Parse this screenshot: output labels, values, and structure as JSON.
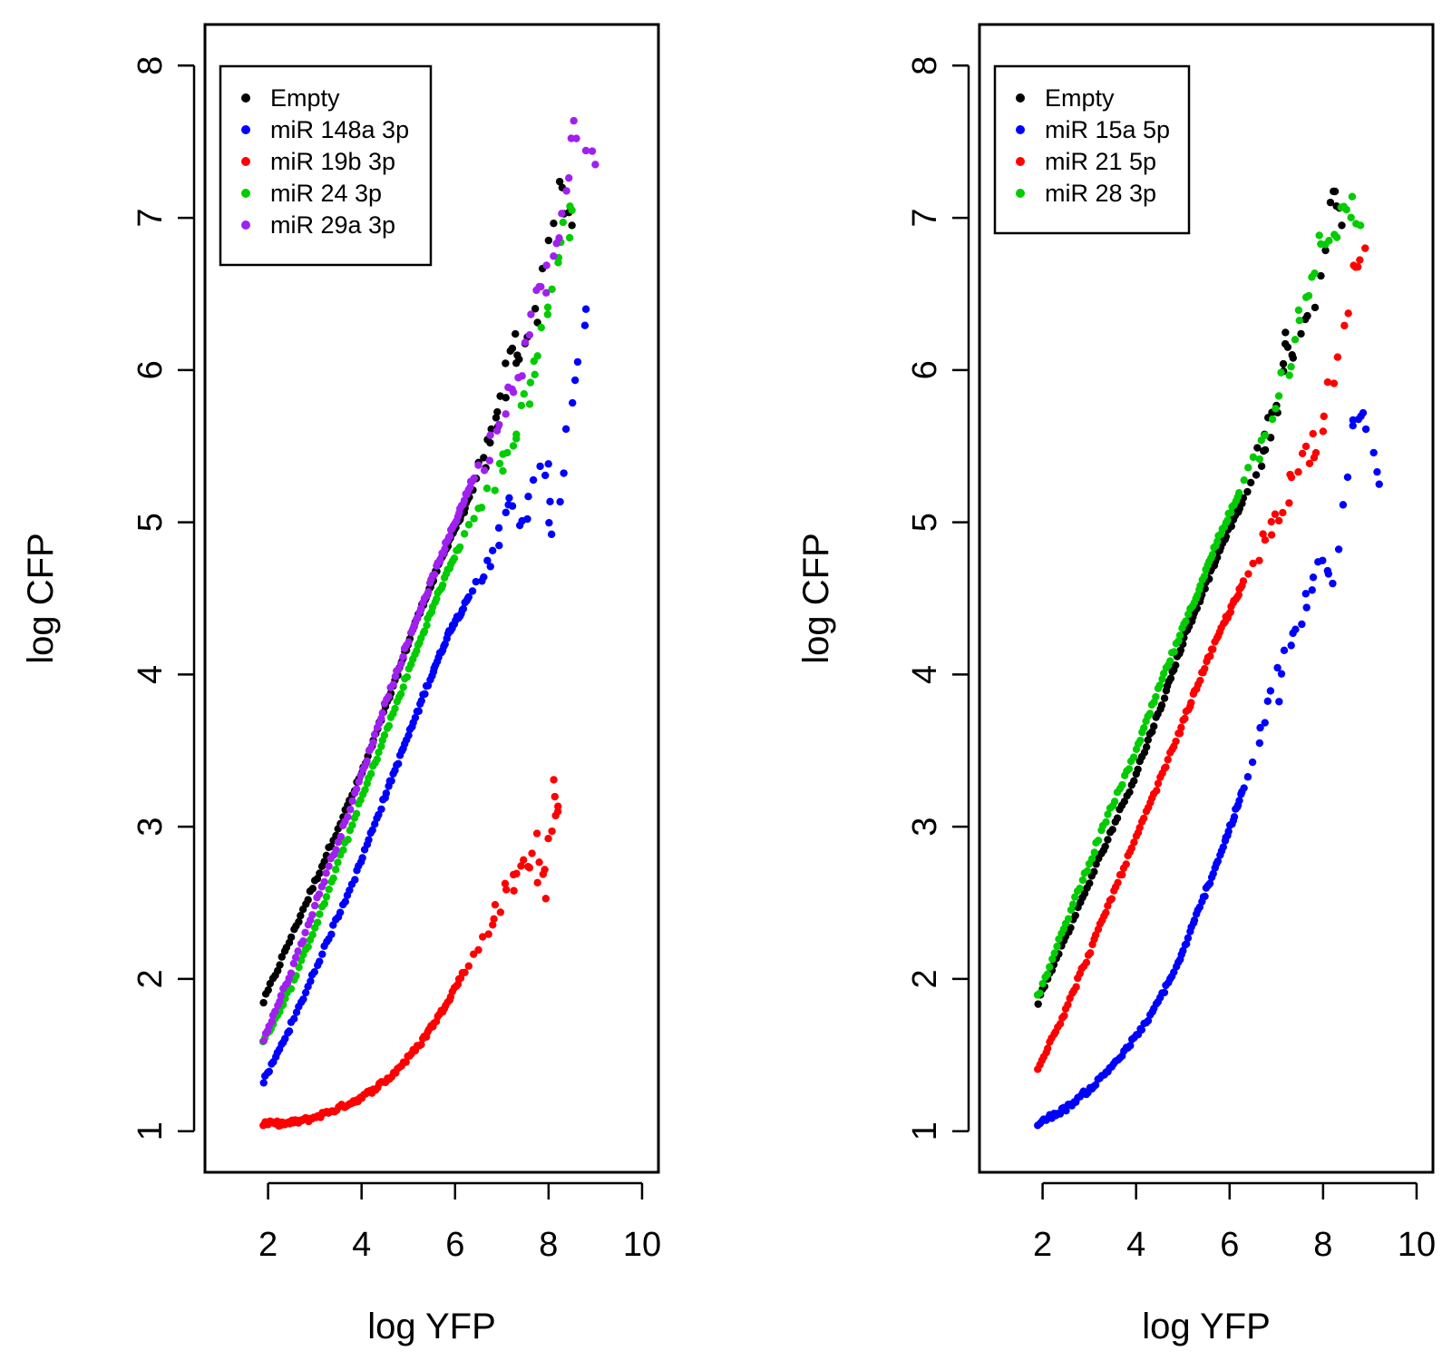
{
  "chart_data": [
    {
      "type": "scatter",
      "xlabel": "log YFP",
      "ylabel": "log CFP",
      "xlim": [
        0.65,
        10.35
      ],
      "ylim": [
        0.73,
        8.27
      ],
      "x_ticks": [
        2,
        4,
        6,
        8,
        10
      ],
      "y_ticks": [
        1,
        2,
        3,
        4,
        5,
        6,
        7,
        8
      ],
      "grid": false,
      "legend_position": "top-left",
      "series": [
        {
          "name": "Empty",
          "color": "#000000",
          "x": [
            1.9,
            2.6,
            3.3,
            4.0,
            4.6,
            5.1,
            5.5,
            5.9,
            6.3,
            6.6,
            6.8,
            7.0,
            7.2,
            7.4,
            7.8,
            8.2,
            8.5
          ],
          "y": [
            1.85,
            2.35,
            2.85,
            3.35,
            3.85,
            4.3,
            4.6,
            4.9,
            5.15,
            5.4,
            5.55,
            5.75,
            6.2,
            6.1,
            6.4,
            7.25,
            6.95
          ]
        },
        {
          "name": "miR 148a 3p",
          "color": "#0000ff",
          "x": [
            1.9,
            2.5,
            3.2,
            3.9,
            4.5,
            5.0,
            5.5,
            5.9,
            6.3,
            6.6,
            6.9,
            7.2,
            7.5,
            7.9,
            8.1,
            8.5,
            8.8
          ],
          "y": [
            1.32,
            1.7,
            2.2,
            2.7,
            3.2,
            3.6,
            4.0,
            4.3,
            4.5,
            4.7,
            4.9,
            5.1,
            5.0,
            5.4,
            4.95,
            5.8,
            6.4
          ]
        },
        {
          "name": "miR 19b 3p",
          "color": "#ff0000",
          "x": [
            1.9,
            2.4,
            2.9,
            3.5,
            4.0,
            4.6,
            5.2,
            5.7,
            6.2,
            6.6,
            6.9,
            7.2,
            7.5,
            7.7,
            7.9,
            8.1,
            8.2
          ],
          "y": [
            1.05,
            1.05,
            1.08,
            1.15,
            1.22,
            1.35,
            1.55,
            1.78,
            2.05,
            2.25,
            2.5,
            2.6,
            2.75,
            2.9,
            2.5,
            3.25,
            3.1
          ]
        },
        {
          "name": "miR 24 3p",
          "color": "#00cc00",
          "x": [
            1.9,
            2.5,
            3.2,
            3.9,
            4.5,
            5.1,
            5.6,
            6.1,
            6.5,
            6.9,
            7.2,
            7.5,
            7.7,
            8.0,
            8.3,
            8.5
          ],
          "y": [
            1.58,
            1.95,
            2.5,
            3.1,
            3.6,
            4.1,
            4.5,
            4.85,
            5.1,
            5.3,
            5.5,
            5.8,
            6.05,
            6.45,
            6.85,
            7.05
          ]
        },
        {
          "name": "miR 29a 3p",
          "color": "#a020f0",
          "x": [
            1.9,
            2.5,
            3.2,
            3.9,
            4.5,
            5.1,
            5.6,
            6.0,
            6.4,
            6.8,
            7.1,
            7.4,
            7.7,
            8.0,
            8.3,
            8.5,
            9.0
          ],
          "y": [
            1.6,
            2.05,
            2.65,
            3.25,
            3.8,
            4.3,
            4.7,
            5.0,
            5.3,
            5.55,
            5.85,
            6.05,
            6.45,
            6.65,
            6.95,
            7.65,
            7.35
          ]
        }
      ]
    },
    {
      "type": "scatter",
      "xlabel": "log YFP",
      "ylabel": "log CFP",
      "xlim": [
        0.65,
        10.35
      ],
      "ylim": [
        0.73,
        8.27
      ],
      "x_ticks": [
        2,
        4,
        6,
        8,
        10
      ],
      "y_ticks": [
        1,
        2,
        3,
        4,
        5,
        6,
        7,
        8
      ],
      "grid": false,
      "legend_position": "top-left",
      "series": [
        {
          "name": "Empty",
          "color": "#000000",
          "x": [
            1.9,
            2.6,
            3.3,
            4.0,
            4.6,
            5.1,
            5.5,
            5.9,
            6.3,
            6.6,
            6.8,
            7.0,
            7.2,
            7.4,
            7.8,
            8.2,
            8.4
          ],
          "y": [
            1.85,
            2.35,
            2.85,
            3.35,
            3.85,
            4.3,
            4.6,
            4.9,
            5.15,
            5.4,
            5.55,
            5.75,
            6.2,
            6.1,
            6.4,
            7.25,
            6.95
          ]
        },
        {
          "name": "miR 15a 5p",
          "color": "#0000ff",
          "x": [
            1.9,
            2.5,
            3.1,
            3.7,
            4.3,
            4.9,
            5.4,
            5.9,
            6.3,
            6.7,
            7.0,
            7.3,
            7.6,
            7.9,
            8.2,
            8.6,
            8.9,
            9.2
          ],
          "y": [
            1.05,
            1.15,
            1.3,
            1.5,
            1.75,
            2.1,
            2.5,
            2.9,
            3.25,
            3.6,
            3.9,
            4.2,
            4.4,
            4.7,
            4.6,
            5.6,
            5.7,
            5.25
          ]
        },
        {
          "name": "miR 21 5p",
          "color": "#ff0000",
          "x": [
            1.9,
            2.5,
            3.1,
            3.7,
            4.3,
            4.9,
            5.4,
            5.9,
            6.3,
            6.7,
            7.0,
            7.3,
            7.6,
            7.9,
            8.2,
            8.6,
            8.9
          ],
          "y": [
            1.42,
            1.8,
            2.25,
            2.7,
            3.15,
            3.6,
            4.0,
            4.35,
            4.6,
            4.85,
            5.05,
            5.25,
            5.45,
            5.55,
            6.0,
            6.6,
            6.8
          ]
        },
        {
          "name": "miR 28 3p",
          "color": "#00cc00",
          "x": [
            1.9,
            2.6,
            3.3,
            4.0,
            4.6,
            5.2,
            5.7,
            6.2,
            6.6,
            7.0,
            7.3,
            7.6,
            7.9,
            8.2,
            8.5,
            8.8
          ],
          "y": [
            1.88,
            2.45,
            3.0,
            3.5,
            4.0,
            4.45,
            4.85,
            5.2,
            5.5,
            5.8,
            6.1,
            6.4,
            6.8,
            6.9,
            7.1,
            6.95
          ]
        }
      ]
    }
  ]
}
